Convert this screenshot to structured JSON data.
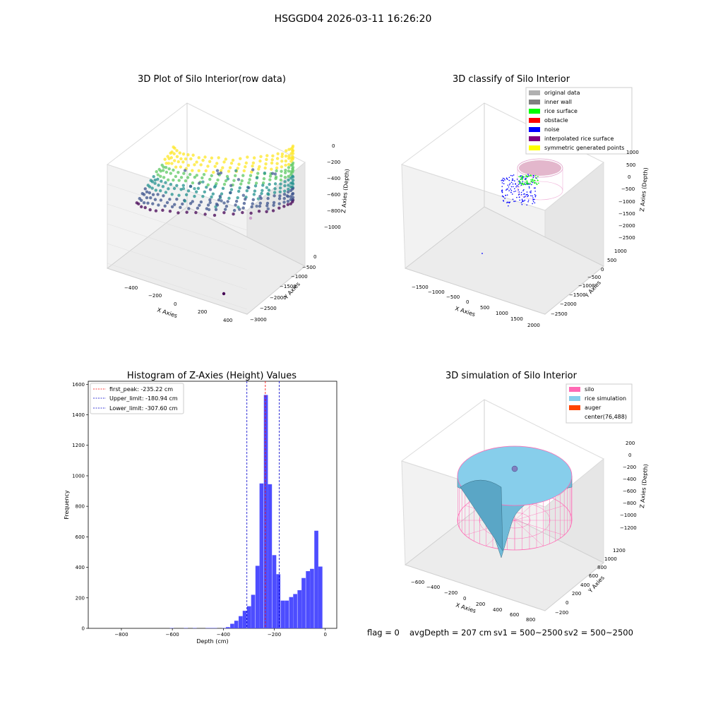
{
  "suptitle": "HSGGD04 2026-03-11 16:26:20",
  "footer": {
    "flag": "flag = 0",
    "avg": "avgDepth = 207 cm",
    "sv1": "sv1 = 500~2500",
    "sv2": "sv2 = 500~2500"
  },
  "colors": {
    "hist_bar": "#4d4dff",
    "peak_line": "#ff0000",
    "limit_line": "#0000cc",
    "silo": "#ff69b4",
    "rice": "#87ceeb",
    "auger": "#ff4500"
  },
  "chart_data": [
    {
      "type": "scatter",
      "projection": "3d",
      "title": "3D Plot of Silo Interior(row data)",
      "xlabel": "X Axies",
      "ylabel": "Y Axies",
      "zlabel": "Z Axies (Depth)",
      "x_ticks": [
        "−400",
        "−200",
        "0",
        "200",
        "400"
      ],
      "y_ticks": [
        "0",
        "−500",
        "−1000",
        "−1500",
        "−2000",
        "−2500",
        "−3000"
      ],
      "z_ticks": [
        "0",
        "−200",
        "−400",
        "−600",
        "−800",
        "−1000"
      ],
      "colormap": "viridis"
    },
    {
      "type": "scatter",
      "projection": "3d",
      "title": "3D classify of Silo Interior",
      "xlabel": "X Axies",
      "ylabel": "Y Axies",
      "zlabel": "Z Axies (Depth)",
      "x_ticks": [
        "−1500",
        "−1000",
        "−500",
        "0",
        "500",
        "1000",
        "1500",
        "2000"
      ],
      "y_ticks": [
        "1000",
        "500",
        "0",
        "−500",
        "−1000",
        "−1500",
        "−2000",
        "−2500"
      ],
      "z_ticks": [
        "1000",
        "500",
        "0",
        "−500",
        "−1000",
        "−1500",
        "−2000",
        "−2500"
      ],
      "legend": [
        {
          "label": "original data",
          "color": "#b0b0b0"
        },
        {
          "label": "inner wall",
          "color": "#808080"
        },
        {
          "label": "rice surface",
          "color": "#00ff00"
        },
        {
          "label": "obstacle",
          "color": "#ff0000"
        },
        {
          "label": "noise",
          "color": "#0000ff"
        },
        {
          "label": "interpolated rice surface",
          "color": "#800080"
        },
        {
          "label": "symmetric generated points",
          "color": "#ffff00"
        }
      ],
      "legend_position": "upper right"
    },
    {
      "type": "histogram",
      "title": "Histogram of Z-Axies (Height) Values",
      "xlabel": "Depth (cm)",
      "ylabel": "Frequency",
      "xlim": [
        -930,
        45
      ],
      "ylim": [
        0,
        1620
      ],
      "x_ticks": [
        {
          "v": -800,
          "t": "−800"
        },
        {
          "v": -600,
          "t": "−600"
        },
        {
          "v": -400,
          "t": "−400"
        },
        {
          "v": -200,
          "t": "−200"
        },
        {
          "v": 0,
          "t": "0"
        }
      ],
      "y_ticks": [
        {
          "v": 0,
          "t": "0"
        },
        {
          "v": 200,
          "t": "200"
        },
        {
          "v": 400,
          "t": "400"
        },
        {
          "v": 600,
          "t": "600"
        },
        {
          "v": 800,
          "t": "800"
        },
        {
          "v": 1000,
          "t": "1000"
        },
        {
          "v": 1200,
          "t": "1200"
        },
        {
          "v": 1400,
          "t": "1400"
        },
        {
          "v": 1600,
          "t": "1600"
        }
      ],
      "bin_width": 16.5,
      "bins": [
        {
          "x": -610,
          "c": 2
        },
        {
          "x": -555,
          "c": 2
        },
        {
          "x": -520,
          "c": 2
        },
        {
          "x": -470,
          "c": 2
        },
        {
          "x": -455,
          "c": 2
        },
        {
          "x": -440,
          "c": 2
        },
        {
          "x": -405,
          "c": 2
        },
        {
          "x": -390,
          "c": 8
        },
        {
          "x": -373,
          "c": 30
        },
        {
          "x": -357,
          "c": 50
        },
        {
          "x": -340,
          "c": 80
        },
        {
          "x": -324,
          "c": 115
        },
        {
          "x": -307,
          "c": 145
        },
        {
          "x": -291,
          "c": 220
        },
        {
          "x": -274,
          "c": 410
        },
        {
          "x": -258,
          "c": 950
        },
        {
          "x": -241,
          "c": 1530
        },
        {
          "x": -225,
          "c": 945
        },
        {
          "x": -208,
          "c": 480
        },
        {
          "x": -192,
          "c": 355
        },
        {
          "x": -175,
          "c": 182
        },
        {
          "x": -159,
          "c": 182
        },
        {
          "x": -142,
          "c": 205
        },
        {
          "x": -126,
          "c": 225
        },
        {
          "x": -109,
          "c": 250
        },
        {
          "x": -93,
          "c": 330
        },
        {
          "x": -76,
          "c": 375
        },
        {
          "x": -60,
          "c": 390
        },
        {
          "x": -43,
          "c": 640
        },
        {
          "x": -27,
          "c": 405
        }
      ],
      "lines": [
        {
          "label": "first_peak: -235.22 cm",
          "value": -235.22,
          "color": "#ff0000"
        },
        {
          "label": "Upper_limit: -180.94 cm",
          "value": -180.94,
          "color": "#0000cc"
        },
        {
          "label": "Lower_limit: -307.60 cm",
          "value": -307.6,
          "color": "#0000cc"
        }
      ],
      "legend_position": "upper left"
    },
    {
      "type": "surface",
      "projection": "3d",
      "title": "3D simulation of Silo Interior",
      "xlabel": "X Axies",
      "ylabel": "Y Axies",
      "zlabel": "Z Axies (Depth)",
      "x_ticks": [
        "−600",
        "−400",
        "−200",
        "0",
        "200",
        "400",
        "600",
        "800"
      ],
      "y_ticks": [
        "1200",
        "1000",
        "800",
        "600",
        "400",
        "200",
        "0",
        "−200"
      ],
      "z_ticks": [
        "200",
        "0",
        "−200",
        "−400",
        "−600",
        "−800",
        "−1000",
        "−1200"
      ],
      "legend": [
        {
          "label": "silo",
          "color": "#ff69b4"
        },
        {
          "label": "rice simulation",
          "color": "#87ceeb"
        },
        {
          "label": "auger",
          "color": "#ff4500"
        },
        {
          "label": "center(76,488)",
          "color": ""
        }
      ],
      "legend_position": "upper right"
    }
  ]
}
